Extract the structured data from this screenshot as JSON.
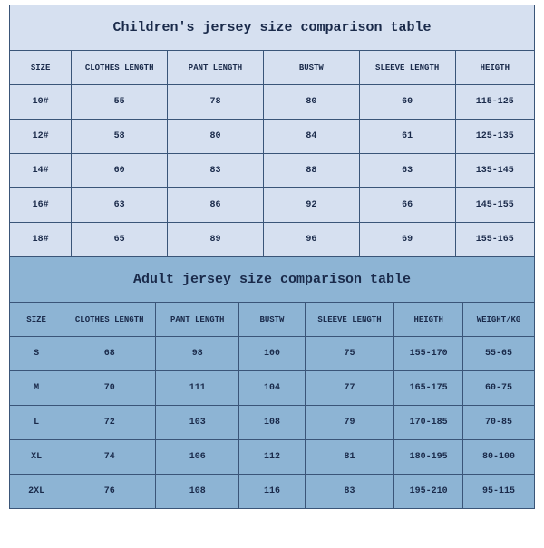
{
  "children_table": {
    "title": "Children's jersey size comparison table",
    "columns": [
      "SIZE",
      "CLOTHES LENGTH",
      "PANT LENGTH",
      "BUSTW",
      "SLEEVE LENGTH",
      "HEIGTH"
    ],
    "rows": [
      [
        "10#",
        "55",
        "78",
        "80",
        "60",
        "115-125"
      ],
      [
        "12#",
        "58",
        "80",
        "84",
        "61",
        "125-135"
      ],
      [
        "14#",
        "60",
        "83",
        "88",
        "63",
        "135-145"
      ],
      [
        "16#",
        "63",
        "86",
        "92",
        "66",
        "145-155"
      ],
      [
        "18#",
        "65",
        "89",
        "96",
        "69",
        "155-165"
      ]
    ],
    "title_bg": "#d6e0f0",
    "header_bg": "#d6e0f0",
    "row_bg": "#d6e0f0",
    "border_color": "#3a5578",
    "text_color": "#1a2a4a",
    "title_fontsize": 15,
    "body_fontsize": 10
  },
  "adult_table": {
    "title": "Adult jersey size comparison table",
    "columns": [
      "SIZE",
      "CLOTHES LENGTH",
      "PANT LENGTH",
      "BUSTW",
      "SLEEVE LENGTH",
      "HEIGTH",
      "WEIGHT/KG"
    ],
    "rows": [
      [
        "S",
        "68",
        "98",
        "100",
        "75",
        "155-170",
        "55-65"
      ],
      [
        "M",
        "70",
        "111",
        "104",
        "77",
        "165-175",
        "60-75"
      ],
      [
        "L",
        "72",
        "103",
        "108",
        "79",
        "170-185",
        "70-85"
      ],
      [
        "XL",
        "74",
        "106",
        "112",
        "81",
        "180-195",
        "80-100"
      ],
      [
        "2XL",
        "76",
        "108",
        "116",
        "83",
        "195-210",
        "95-115"
      ]
    ],
    "title_bg": "#8db4d4",
    "header_bg": "#8db4d4",
    "row_bg": "#8db4d4",
    "border_color": "#3a5578",
    "text_color": "#1a2a4a",
    "title_fontsize": 15,
    "body_fontsize": 10
  }
}
